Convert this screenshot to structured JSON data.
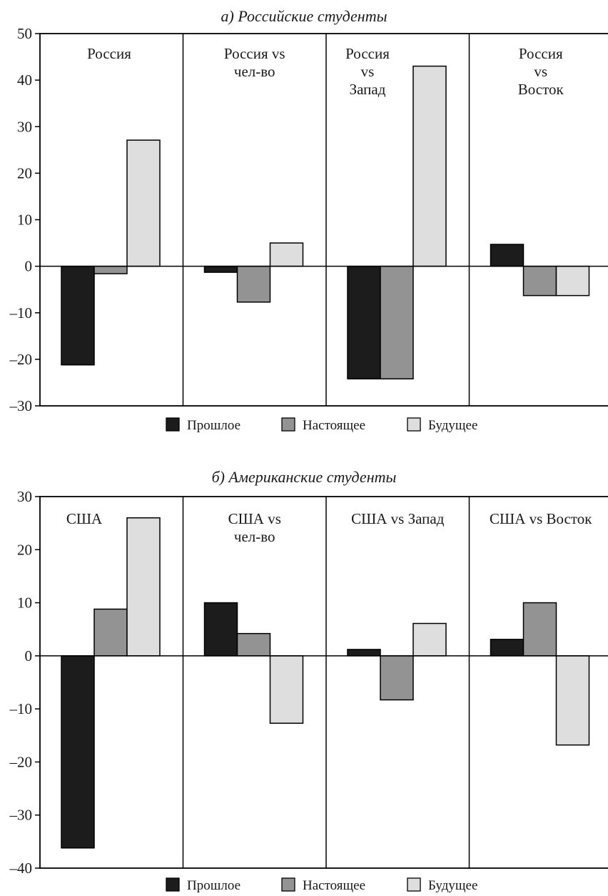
{
  "series_colors": {
    "past": "#1c1c1c",
    "present": "#939393",
    "future": "#dedede"
  },
  "chart_data": [
    {
      "type": "bar",
      "title": "а) Российские студенты",
      "ylim": [
        -30,
        50
      ],
      "yticks": [
        "50",
        "40",
        "30",
        "20",
        "10",
        "0",
        "-10",
        "-20",
        "-30"
      ],
      "legend": [
        "Прошлое",
        "Настоящее",
        "Будущее"
      ],
      "legend_position": "bottom",
      "grid": false,
      "categories": [
        {
          "lines": [
            "Россия"
          ]
        },
        {
          "lines": [
            "Россия vs",
            "чел-во"
          ]
        },
        {
          "lines": [
            "Россия",
            "vs",
            "Запад"
          ]
        },
        {
          "lines": [
            "Россия",
            "vs",
            "Восток"
          ]
        }
      ],
      "series": [
        {
          "name": "Прошлое",
          "values": [
            -21.2,
            -1.3,
            -24.2,
            4.7
          ]
        },
        {
          "name": "Настоящее",
          "values": [
            -1.6,
            -7.7,
            -24.2,
            -6.3
          ]
        },
        {
          "name": "Будущее",
          "values": [
            27.1,
            5.0,
            43.0,
            -6.3
          ]
        }
      ]
    },
    {
      "type": "bar",
      "title": "б) Американские студенты",
      "ylim": [
        -40,
        30
      ],
      "yticks": [
        "30",
        "20",
        "10",
        "0",
        "-10",
        "-20",
        "-30",
        "-40"
      ],
      "legend": [
        "Прошлое",
        "Настоящее",
        "Будущее"
      ],
      "legend_position": "bottom",
      "grid": false,
      "categories": [
        {
          "lines": [
            "США"
          ]
        },
        {
          "lines": [
            "США vs",
            "чел-во"
          ]
        },
        {
          "lines": [
            "США vs Запад"
          ]
        },
        {
          "lines": [
            "США vs Восток"
          ]
        }
      ],
      "series": [
        {
          "name": "Прошлое",
          "values": [
            -36.2,
            10.0,
            1.2,
            3.1
          ]
        },
        {
          "name": "Настоящее",
          "values": [
            8.8,
            4.2,
            -8.3,
            10.0
          ]
        },
        {
          "name": "Будущее",
          "values": [
            26.0,
            -12.7,
            6.1,
            -16.8
          ]
        }
      ]
    }
  ]
}
